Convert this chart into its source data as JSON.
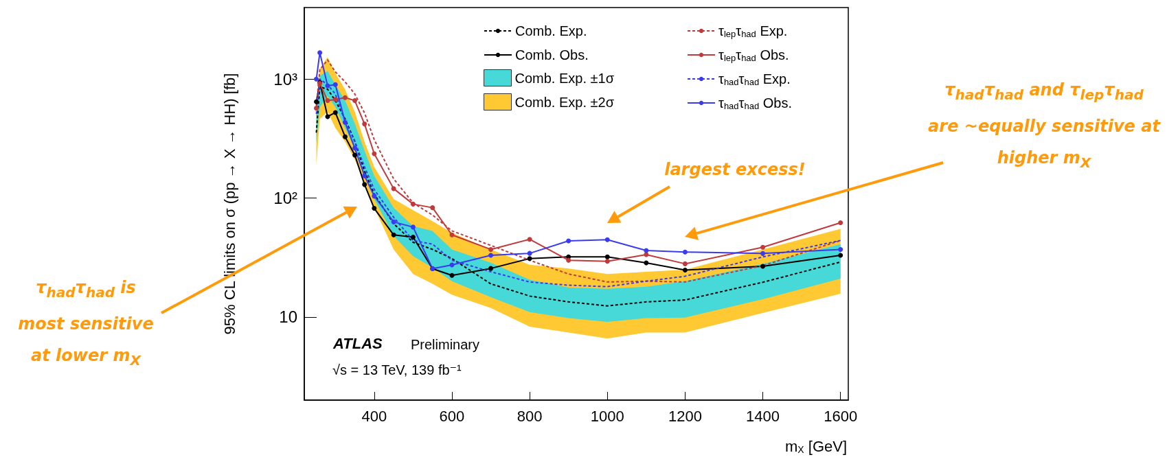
{
  "chart_data": {
    "type": "line",
    "xlabel": "m$_{X}$ [GeV]",
    "ylabel": "95% CL limits on σ (pp → X → HH) [fb]",
    "log": "y",
    "xlim": [
      220,
      1620
    ],
    "xticks": [
      400,
      600,
      800,
      1000,
      1200,
      1400,
      1600
    ],
    "ylim": [
      2,
      4000
    ],
    "yticks": [
      {
        "value": 10,
        "label": "10"
      },
      {
        "value": 100,
        "label": "10²"
      },
      {
        "value": 1000,
        "label": "10³"
      }
    ],
    "grid": false,
    "legend": "top right",
    "x": [
      251,
      260,
      280,
      300,
      325,
      350,
      375,
      400,
      450,
      500,
      550,
      600,
      700,
      800,
      900,
      1000,
      1100,
      1200,
      1400,
      1600
    ],
    "series": [
      {
        "name": "Comb. Exp.",
        "color": "#000000",
        "line_style": "dashed",
        "marker": "none",
        "values": [
          355,
          860,
          823,
          660,
          463,
          300,
          168,
          108,
          61,
          42.5,
          37,
          31,
          19,
          15,
          13.4,
          12.4,
          13.4,
          13.9,
          19.6,
          29
        ]
      },
      {
        "name": "Comb. Obs.",
        "color": "#000000",
        "line_style": "solid",
        "marker": "circle",
        "values": [
          645,
          940,
          484,
          524,
          328,
          230,
          130,
          82,
          49,
          47,
          25.5,
          22.4,
          25.6,
          31,
          32,
          32,
          28.5,
          24.8,
          26.7,
          33
        ]
      },
      {
        "name": "Comb. Exp. ±1σ",
        "color": "#47d8d8",
        "values": [
          null,
          null,
          null,
          null,
          null,
          null,
          null,
          null,
          null,
          null,
          null,
          null,
          null,
          null,
          null,
          null,
          null,
          null,
          null,
          null
        ],
        "upper": [
          530,
          1070,
          1170,
          900,
          660,
          424,
          250,
          154,
          83,
          58,
          53,
          37,
          28.6,
          20.6,
          17.7,
          17.3,
          18,
          20,
          28,
          41
        ],
        "lower": [
          290,
          580,
          720,
          580,
          388,
          261,
          154,
          98,
          48,
          32.5,
          26,
          20,
          14.7,
          11,
          9.8,
          9.1,
          9.8,
          9.9,
          14.1,
          21
        ]
      },
      {
        "name": "Comb. Exp. ±2σ",
        "color": "#ffc933",
        "values": [
          null,
          null,
          null,
          null,
          null,
          null,
          null,
          null,
          null,
          null,
          null,
          null,
          null,
          null,
          null,
          null,
          null,
          null,
          null,
          null
        ],
        "upper": [
          600,
          1225,
          1530,
          1120,
          820,
          530,
          298,
          183,
          98,
          79,
          64,
          51,
          37,
          27.5,
          25.6,
          23,
          24,
          25,
          37,
          55
        ],
        "lower": [
          191,
          463,
          530,
          388,
          298,
          210,
          134,
          83,
          37,
          23,
          19,
          15.4,
          11.9,
          8.3,
          7.4,
          6.6,
          7.4,
          7.4,
          10.8,
          15.7
        ]
      },
      {
        "name": "τ$_{lep}$τ$_{had}$ Exp.",
        "color": "#c0393b",
        "line_style": "dashed",
        "marker": "none",
        "values": [
          600,
          1200,
          1450,
          1150,
          950,
          750,
          520,
          310,
          145,
          91,
          72,
          53,
          40,
          30,
          23,
          19.7,
          20,
          19.7,
          27,
          44
        ]
      },
      {
        "name": "τ$_{lep}$τ$_{had}$ Obs.",
        "color": "#c0393b",
        "line_style": "solid",
        "marker": "circle",
        "values": [
          570,
          920,
          660,
          675,
          700,
          660,
          420,
          236,
          120,
          89,
          83,
          49,
          37,
          45,
          30,
          29.4,
          33.5,
          28,
          38.6,
          62
        ]
      },
      {
        "name": "τ$_{had}$τ$_{had}$ Exp.",
        "color": "#3a3af0",
        "line_style": "dashed",
        "marker": "none",
        "values": [
          509,
          1000,
          900,
          750,
          445,
          300,
          183,
          118,
          69,
          44,
          41,
          30,
          24,
          19.7,
          18.5,
          18,
          20,
          22,
          32,
          44
        ]
      },
      {
        "name": "τ$_{had}$τ$_{had}$ Obs.",
        "color": "#3a3af0",
        "line_style": "solid",
        "marker": "circle",
        "values": [
          1000,
          1670,
          880,
          900,
          433,
          263,
          154,
          104,
          63,
          57,
          25.5,
          27.4,
          33,
          34.3,
          43.6,
          44.7,
          36.2,
          35.2,
          34.2,
          37
        ]
      }
    ],
    "annotations": [
      "ATLAS",
      "Preliminary",
      "√s = 13 TeV, 139 fb⁻¹",
      "largest excess!",
      "τ$_{had}$τ$_{had}$ and τ$_{lep}$τ$_{had}$\nare ~equally sensitive at\nhigher m$_{X}$",
      "τ$_{had}$τ$_{had}$ is\nmost sensitive\nat lower m$_{X}$"
    ]
  }
}
